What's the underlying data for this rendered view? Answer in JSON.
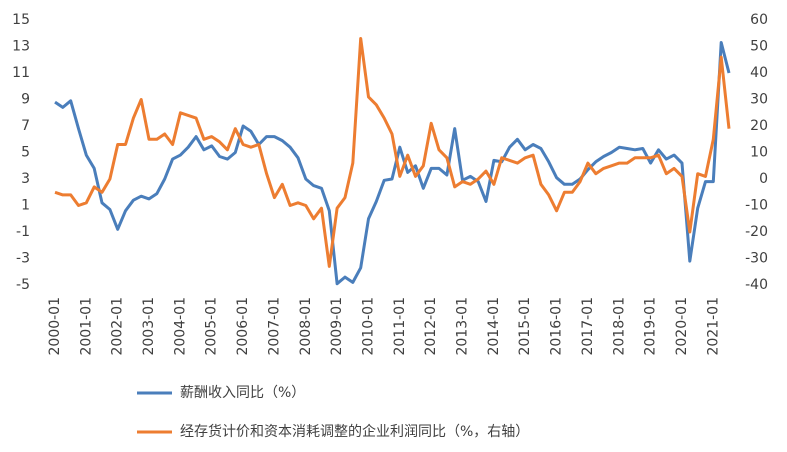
{
  "chart_data": {
    "type": "line",
    "categories": [
      "2000-01",
      null,
      null,
      null,
      "2001-01",
      null,
      null,
      null,
      "2002-01",
      null,
      null,
      null,
      "2003-01",
      null,
      null,
      null,
      "2004-01",
      null,
      null,
      null,
      "2005-01",
      null,
      null,
      null,
      "2006-01",
      null,
      null,
      null,
      "2007-01",
      null,
      null,
      null,
      "2008-01",
      null,
      null,
      null,
      "2009-01",
      null,
      null,
      null,
      "2010-01",
      null,
      null,
      null,
      "2011-01",
      null,
      null,
      null,
      "2012-01",
      null,
      null,
      null,
      "2013-01",
      null,
      null,
      null,
      "2014-01",
      null,
      null,
      null,
      "2015-01",
      null,
      null,
      null,
      "2016-01",
      null,
      null,
      null,
      "2017-01",
      null,
      null,
      null,
      "2018-01",
      null,
      null,
      null,
      "2019-01",
      null,
      null,
      null,
      "2020-01",
      null,
      null,
      null,
      "2021-01",
      null,
      null
    ],
    "series": [
      {
        "name": "薪酬收入同比（%）",
        "color": "#4a7ebb",
        "axis": "y",
        "values": [
          8.8,
          8.4,
          8.9,
          6.8,
          4.8,
          3.8,
          1.2,
          0.7,
          -0.8,
          0.6,
          1.4,
          1.7,
          1.5,
          1.9,
          3.0,
          4.5,
          4.8,
          5.4,
          6.2,
          5.2,
          5.5,
          4.7,
          4.5,
          5.0,
          7.0,
          6.6,
          5.6,
          6.2,
          6.2,
          5.9,
          5.4,
          4.6,
          3.0,
          2.5,
          2.3,
          0.6,
          -4.9,
          -4.4,
          -4.8,
          -3.7,
          0.0,
          1.3,
          2.9,
          3.0,
          5.4,
          3.5,
          4.0,
          2.3,
          3.8,
          3.8,
          3.3,
          6.8,
          2.9,
          3.2,
          2.8,
          1.3,
          4.4,
          4.3,
          5.4,
          6.0,
          5.2,
          5.6,
          5.3,
          4.3,
          3.1,
          2.6,
          2.6,
          3.0,
          3.7,
          4.3,
          4.7,
          5.0,
          5.4,
          5.3,
          5.2,
          5.3,
          4.2,
          5.2,
          4.5,
          4.8,
          4.2,
          -3.2,
          0.8,
          2.8,
          2.8,
          13.3,
          11.0
        ]
      },
      {
        "name": "经存货计价和资本消耗调整的企业利润同比（%，右轴）",
        "color": "#ed7d31",
        "axis": "y2",
        "values": [
          -5,
          -6,
          -6,
          -10,
          -9,
          -3,
          -5,
          0,
          13,
          13,
          23,
          30,
          15,
          15,
          17,
          13,
          25,
          24,
          23,
          15,
          16,
          14,
          11,
          19,
          13,
          12,
          13,
          2,
          -7,
          -2,
          -10,
          -9,
          -10,
          -15,
          -11,
          -33,
          -11,
          -7,
          6,
          53,
          31,
          28,
          23,
          17,
          1,
          9,
          1,
          5,
          21,
          11,
          8,
          -3,
          -1,
          -2,
          0,
          3,
          -2,
          8,
          7,
          6,
          8,
          9,
          -2,
          -6,
          -12,
          -5,
          -5,
          -1,
          6,
          2,
          4,
          5,
          6,
          6,
          8,
          8,
          8,
          9,
          2,
          4,
          1,
          -20,
          2,
          1,
          15,
          46,
          19
        ]
      }
    ],
    "ylim": [
      -5,
      15
    ],
    "yticks": [
      -5,
      -3,
      -1,
      1,
      3,
      5,
      7,
      9,
      11,
      13,
      15
    ],
    "y2lim": [
      -40,
      60
    ],
    "y2ticks": [
      -40,
      -30,
      -20,
      -10,
      0,
      10,
      20,
      30,
      40,
      50,
      60
    ],
    "grid": false,
    "legend": "bottom"
  }
}
